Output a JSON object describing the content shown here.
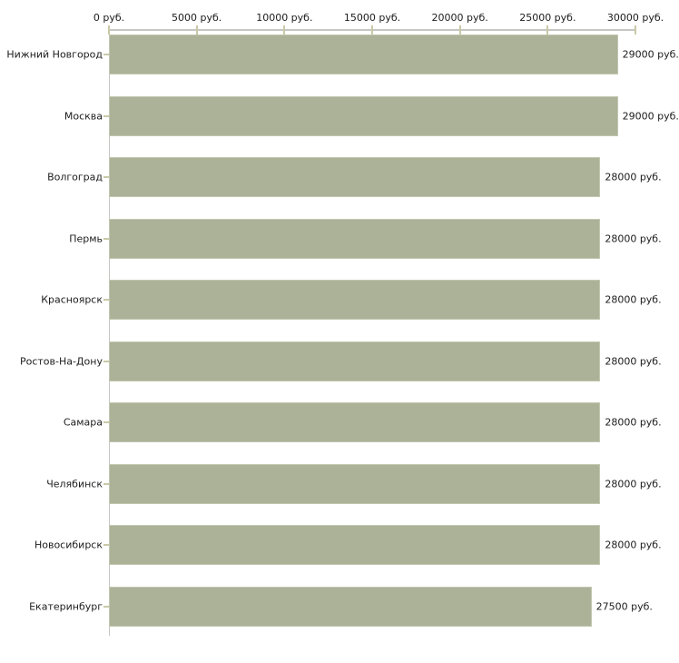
{
  "chart_data": {
    "type": "bar",
    "orientation": "horizontal",
    "title": "",
    "xlabel": "",
    "ylabel": "",
    "categories": [
      "Нижний Новгород",
      "Москва",
      "Волгоград",
      "Пермь",
      "Красноярск",
      "Ростов-На-Дону",
      "Самара",
      "Челябинск",
      "Новосибирск",
      "Екатеринбург"
    ],
    "values": [
      29000,
      29000,
      28000,
      28000,
      28000,
      28000,
      28000,
      28000,
      28000,
      27500
    ],
    "value_labels": [
      "29000 руб.",
      "29000 руб.",
      "28000 руб.",
      "28000 руб.",
      "28000 руб.",
      "28000 руб.",
      "28000 руб.",
      "28000 руб.",
      "28000 руб.",
      "27500 руб."
    ],
    "x_axis": {
      "position": "top",
      "min": 0,
      "max": 30000,
      "tick_values": [
        0,
        5000,
        10000,
        15000,
        20000,
        25000,
        30000
      ],
      "tick_labels": [
        "0 руб.",
        "5000 руб.",
        "10000 руб.",
        "15000 руб.",
        "20000 руб.",
        "25000 руб.",
        "30000 руб."
      ]
    },
    "grid": false,
    "legend": "none",
    "colors": {
      "bar_fill": "#abb298",
      "bar_border": "#c2c7b0",
      "axis_line": "#c6c6c3",
      "tick_mark": "#c9c9a8",
      "text": "#1c1c1c",
      "background": "#ffffff"
    }
  }
}
